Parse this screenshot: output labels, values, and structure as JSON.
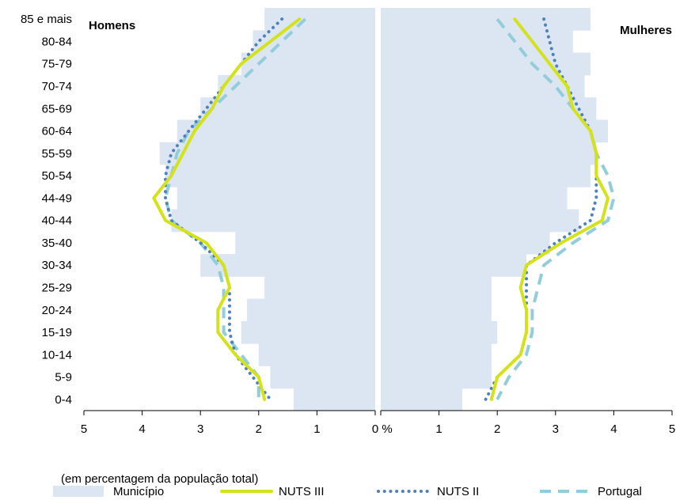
{
  "chart_data": {
    "type": "population-pyramid",
    "panels": [
      "Homens",
      "Mulheres"
    ],
    "age_groups": [
      "85 e mais",
      "80-84",
      "75-79",
      "70-74",
      "65-69",
      "60-64",
      "55-59",
      "50-54",
      "44-49",
      "40-44",
      "35-40",
      "30-34",
      "25-29",
      "20-24",
      "15-19",
      "10-14",
      "5-9",
      "0-4"
    ],
    "x_axis": {
      "range": [
        0,
        5
      ],
      "ticks_left": [
        "5",
        "4",
        "3",
        "2",
        "1",
        "0"
      ],
      "ticks_right": [
        "1",
        "2",
        "3",
        "4",
        "5"
      ],
      "unit_label": "%",
      "caption": "(em percentagem da população total)"
    },
    "series": [
      {
        "name": "Município",
        "kind": "bar",
        "color": "#dce6f2",
        "homens": [
          1.9,
          2.1,
          2.3,
          2.7,
          3.0,
          3.4,
          3.7,
          3.6,
          3.4,
          3.5,
          2.4,
          3.0,
          1.9,
          2.2,
          2.3,
          2.0,
          1.8,
          1.4
        ],
        "mulheres": [
          3.6,
          3.3,
          3.6,
          3.5,
          3.7,
          3.9,
          3.7,
          3.6,
          3.2,
          3.4,
          2.9,
          2.5,
          1.9,
          1.9,
          2.0,
          1.9,
          1.9,
          1.4
        ]
      },
      {
        "name": "NUTS III",
        "kind": "line",
        "color": "#d4e21a",
        "homens": [
          1.3,
          1.8,
          2.3,
          2.6,
          2.8,
          3.1,
          3.3,
          3.5,
          3.8,
          3.6,
          2.9,
          2.6,
          2.5,
          2.7,
          2.7,
          2.4,
          2.0,
          1.9
        ],
        "mulheres": [
          2.3,
          2.6,
          2.9,
          3.2,
          3.3,
          3.6,
          3.7,
          3.7,
          3.9,
          3.8,
          3.1,
          2.5,
          2.4,
          2.5,
          2.5,
          2.4,
          2.0,
          1.9
        ]
      },
      {
        "name": "NUTS II",
        "kind": "line",
        "color": "#4f81bd",
        "homens": [
          1.6,
          2.0,
          2.3,
          2.6,
          2.9,
          3.2,
          3.5,
          3.6,
          3.6,
          3.5,
          3.0,
          2.6,
          2.5,
          2.5,
          2.5,
          2.4,
          2.1,
          1.8
        ],
        "mulheres": [
          2.8,
          2.9,
          3.0,
          3.2,
          3.4,
          3.6,
          3.7,
          3.7,
          3.7,
          3.6,
          3.0,
          2.5,
          2.5,
          2.5,
          2.5,
          2.4,
          2.0,
          1.8
        ]
      },
      {
        "name": "Portugal",
        "kind": "line",
        "color": "#93cdd9",
        "homens": [
          1.2,
          1.6,
          2.0,
          2.4,
          2.8,
          3.2,
          3.4,
          3.5,
          3.6,
          3.5,
          3.0,
          2.7,
          2.6,
          2.6,
          2.6,
          2.3,
          2.0,
          2.0
        ],
        "mulheres": [
          2.0,
          2.3,
          2.6,
          3.0,
          3.3,
          3.6,
          3.7,
          3.9,
          4.0,
          3.9,
          3.3,
          2.8,
          2.7,
          2.6,
          2.6,
          2.5,
          2.2,
          2.0
        ]
      }
    ],
    "legend_position": "bottom",
    "grid": false
  }
}
